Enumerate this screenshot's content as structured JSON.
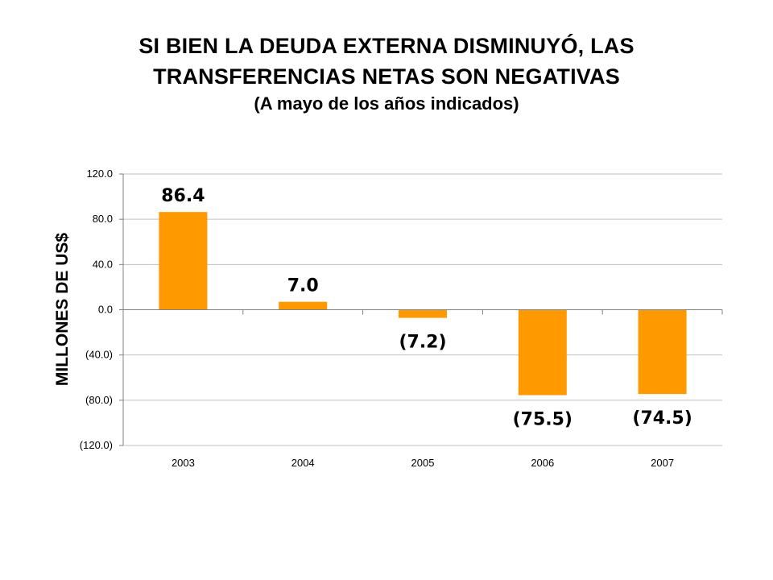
{
  "chart_data": {
    "type": "bar",
    "title_lines": [
      "SI BIEN LA DEUDA EXTERNA DISMINUYÓ, LAS",
      "TRANSFERENCIAS NETAS SON NEGATIVAS"
    ],
    "subtitle": "(A mayo de los años indicados)",
    "ylabel": "MILLONES DE US$",
    "xlabel": "",
    "categories": [
      "2003",
      "2004",
      "2005",
      "2006",
      "2007"
    ],
    "values": [
      86.4,
      7.0,
      -7.2,
      -75.5,
      -74.5
    ],
    "data_labels": [
      "86.4",
      "7.0",
      "(7.2)",
      "(75.5)",
      "(74.5)"
    ],
    "ylim": [
      -120,
      120
    ],
    "yticks": [
      120,
      80,
      40,
      0,
      -40,
      -80,
      -120
    ],
    "ytick_labels": [
      "120.0",
      "80.0",
      "40.0",
      "0.0",
      "(40.0)",
      "(80.0)",
      "(120.0)"
    ],
    "grid": true,
    "legend": "none",
    "bar_color": "#FF9900"
  }
}
